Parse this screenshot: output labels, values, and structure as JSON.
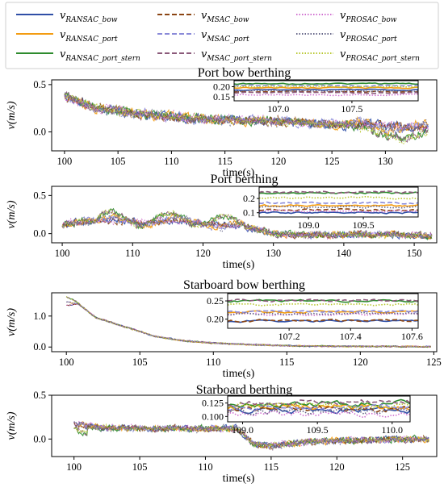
{
  "figure": {
    "legend": [
      {
        "label": "v",
        "sub": "RANSAC_bow",
        "color": "#2f4fa6",
        "dash": "solid"
      },
      {
        "label": "v",
        "sub": "RANSAC_port",
        "color": "#f39c12",
        "dash": "solid"
      },
      {
        "label": "v",
        "sub": "RANSAC_port_stern",
        "color": "#2e8b2e",
        "dash": "solid"
      },
      {
        "label": "v",
        "sub": "MSAC_bow",
        "color": "#8b4513",
        "dash": "dashed"
      },
      {
        "label": "v",
        "sub": "MSAC_port",
        "color": "#8a8ad8",
        "dash": "dashed"
      },
      {
        "label": "v",
        "sub": "MSAC_port_stern",
        "color": "#8b5a7a",
        "dash": "dashed"
      },
      {
        "label": "v",
        "sub": "PROSAC_bow",
        "color": "#d070d0",
        "dash": "dotted"
      },
      {
        "label": "v",
        "sub": "PROSAC_port",
        "color": "#666688",
        "dash": "dotted"
      },
      {
        "label": "v",
        "sub": "PROSAC_port_stern",
        "color": "#b8c830",
        "dash": "dotted"
      }
    ]
  },
  "chart_data": [
    {
      "type": "line",
      "title": "Port bow berthing",
      "xlabel": "time(s)",
      "ylabel": "v(m/s)",
      "xlim": [
        98.8,
        134.8
      ],
      "ylim": [
        -0.2,
        0.55
      ],
      "xticks": [
        100,
        105,
        110,
        115,
        120,
        125,
        130
      ],
      "yticks": [
        0.0,
        0.5
      ],
      "ytick_labels": [
        "0.0",
        "0.5"
      ],
      "t_start": 100,
      "t_end": 134,
      "anchors": [
        [
          100,
          0.38
        ],
        [
          103,
          0.25
        ],
        [
          108,
          0.18
        ],
        [
          113,
          0.13
        ],
        [
          118,
          0.12
        ],
        [
          122,
          0.1
        ],
        [
          125,
          0.08
        ],
        [
          128,
          0.07
        ],
        [
          131,
          0.06
        ],
        [
          134,
          0.04
        ]
      ],
      "noise": 0.035,
      "special": "port_bow",
      "inset": {
        "xlim": [
          106.7,
          107.95
        ],
        "ylim": [
          0.13,
          0.23
        ],
        "xticks": [
          107.0,
          107.5
        ],
        "xtick_labels": [
          "107.0",
          "107.5"
        ],
        "yticks": [
          0.15,
          0.2
        ],
        "ytick_labels": [
          "0.15",
          "0.20"
        ],
        "levels": [
          0.185,
          0.195,
          0.215,
          0.175,
          0.205,
          0.17,
          0.16,
          0.18,
          0.2
        ]
      }
    },
    {
      "type": "line",
      "title": "Port berthing",
      "xlabel": "time(s)",
      "ylabel": "v(m/s)",
      "xlim": [
        98.5,
        153.2
      ],
      "ylim": [
        -0.12,
        0.62
      ],
      "xticks": [
        100,
        110,
        120,
        130,
        140,
        150
      ],
      "yticks": [
        0.0,
        0.5
      ],
      "ytick_labels": [
        "0.0",
        "0.5"
      ],
      "t_start": 100,
      "t_end": 152.5,
      "anchors": [
        [
          100,
          0.12
        ],
        [
          102,
          0.15
        ],
        [
          106,
          0.18
        ],
        [
          110,
          0.15
        ],
        [
          115,
          0.17
        ],
        [
          118,
          0.16
        ],
        [
          121,
          0.14
        ],
        [
          125,
          0.1
        ],
        [
          128,
          0.05
        ],
        [
          130,
          0.0
        ],
        [
          135,
          -0.02
        ],
        [
          142,
          -0.01
        ],
        [
          150,
          -0.02
        ],
        [
          152.5,
          -0.03
        ]
      ],
      "noise": 0.03,
      "special": "port",
      "inset": {
        "xlim": [
          108.55,
          110.0
        ],
        "ylim": [
          0.07,
          0.28
        ],
        "xticks": [
          109.0,
          109.5
        ],
        "xtick_labels": [
          "109.0",
          "109.5"
        ],
        "yticks": [
          0.1,
          0.2
        ],
        "ytick_labels": [
          "0.1",
          "0.2"
        ],
        "levels": [
          0.1,
          0.15,
          0.24,
          0.12,
          0.17,
          0.245,
          0.11,
          0.14,
          0.205
        ]
      }
    },
    {
      "type": "line",
      "title": "Starboard bow berthing",
      "xlabel": "time(s)",
      "ylabel": "v(m/s)",
      "xlim": [
        99.0,
        125.2
      ],
      "ylim": [
        -0.15,
        1.75
      ],
      "xticks": [
        100,
        105,
        110,
        115,
        120,
        125
      ],
      "yticks": [
        0.0,
        1.0
      ],
      "ytick_labels": [
        "0.0",
        "1.0"
      ],
      "t_start": 100,
      "t_end": 124.8,
      "anchors": [
        [
          100,
          1.45
        ],
        [
          100.8,
          1.4
        ],
        [
          102,
          0.95
        ],
        [
          104,
          0.65
        ],
        [
          106,
          0.35
        ],
        [
          108,
          0.2
        ],
        [
          110,
          0.13
        ],
        [
          113,
          0.07
        ],
        [
          116,
          0.03
        ],
        [
          120,
          0.02
        ],
        [
          124.8,
          0.01
        ]
      ],
      "noise": 0.015,
      "special": "starboard_bow",
      "inset": {
        "xlim": [
          107.0,
          107.62
        ],
        "ylim": [
          0.175,
          0.27
        ],
        "xticks": [
          107.2,
          107.4,
          107.6
        ],
        "xtick_labels": [
          "107.2",
          "107.4",
          "107.6"
        ],
        "yticks": [
          0.2,
          0.25
        ],
        "ytick_labels": [
          "0.20",
          "0.25"
        ],
        "levels": [
          0.195,
          0.22,
          0.25,
          0.196,
          0.222,
          0.252,
          0.213,
          0.215,
          0.24
        ]
      }
    },
    {
      "type": "line",
      "title": "Starboard berthing",
      "xlabel": "time(s)",
      "ylabel": "v(m/s)",
      "xlim": [
        98.3,
        127.6
      ],
      "ylim": [
        -0.2,
        0.5
      ],
      "xticks": [
        100,
        105,
        110,
        115,
        120,
        125
      ],
      "yticks": [
        0.0,
        0.5
      ],
      "ytick_labels": [
        "0.0",
        "0.5"
      ],
      "t_start": 100,
      "t_end": 127,
      "anchors": [
        [
          100,
          0.18
        ],
        [
          102,
          0.13
        ],
        [
          106,
          0.12
        ],
        [
          110,
          0.12
        ],
        [
          112.4,
          0.12
        ],
        [
          113.6,
          -0.05
        ],
        [
          115,
          -0.08
        ],
        [
          118,
          -0.03
        ],
        [
          122,
          -0.01
        ],
        [
          127,
          0.0
        ]
      ],
      "noise": 0.025,
      "special": "starboard",
      "inset": {
        "xlim": [
          108.9,
          110.12
        ],
        "ylim": [
          0.09,
          0.138
        ],
        "xticks": [
          109.0,
          109.5,
          110.0
        ],
        "xtick_labels": [
          "109.0",
          "109.5",
          "110.0"
        ],
        "yticks": [
          0.1,
          0.125
        ],
        "ytick_labels": [
          "0.100",
          "0.125"
        ],
        "levels": [
          0.112,
          0.118,
          0.124,
          0.114,
          0.116,
          0.126,
          0.106,
          0.11,
          0.12
        ]
      }
    }
  ]
}
